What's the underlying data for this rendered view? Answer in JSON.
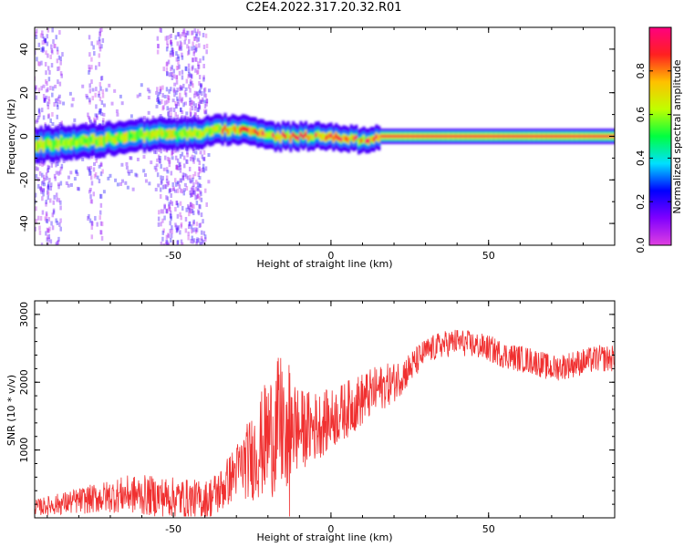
{
  "page": {
    "title": "C2E4.2022.317.20.32.R01"
  },
  "chart_data": [
    {
      "type": "heatmap",
      "title": "",
      "xlabel": "Height of straight line (km)",
      "ylabel": "Frequency (Hz)",
      "xlim": [
        -94,
        90
      ],
      "ylim": [
        -50,
        50
      ],
      "xticks": [
        -50,
        0,
        50
      ],
      "yticks": [
        -40,
        -20,
        0,
        20,
        40
      ],
      "colorbar": {
        "label": "Normalized spectral amplitude",
        "range": [
          0.0,
          1.0
        ],
        "ticks": [
          0.0,
          0.2,
          0.4,
          0.6,
          0.8
        ],
        "stops": [
          "#e040e0",
          "#8000ff",
          "#0000ff",
          "#00e0ff",
          "#00ff40",
          "#c0ff00",
          "#ffc000",
          "#ff2020",
          "#ff0080"
        ]
      },
      "ridge": {
        "x": [
          -94,
          -85,
          -75,
          -65,
          -55,
          -45,
          -40,
          -35,
          -30,
          -25,
          -20,
          -15,
          -10,
          -5,
          0,
          5,
          10,
          15,
          20,
          40,
          60,
          90
        ],
        "y": [
          -4,
          -3,
          -2,
          0,
          1,
          1,
          2,
          3,
          3,
          2,
          0,
          0,
          0,
          0,
          0,
          -1,
          -2,
          0,
          0,
          0,
          0,
          0
        ]
      }
    },
    {
      "type": "line",
      "title": "",
      "xlabel": "Height of straight line (km)",
      "ylabel": "SNR (10 * v/v)",
      "xlim": [
        -94,
        90
      ],
      "ylim": [
        0,
        3200
      ],
      "xticks": [
        -50,
        0,
        50
      ],
      "yticks": [
        1000,
        2000,
        3000
      ],
      "color": "#f03030",
      "trend": {
        "x": [
          -94,
          -80,
          -65,
          -50,
          -40,
          -35,
          -30,
          -25,
          -20,
          -15,
          -10,
          -5,
          0,
          5,
          10,
          15,
          20,
          25,
          30,
          35,
          40,
          45,
          50,
          55,
          60,
          65,
          70,
          75,
          80,
          85,
          90
        ],
        "y": [
          150,
          250,
          350,
          300,
          250,
          400,
          700,
          900,
          1200,
          1400,
          1300,
          1350,
          1450,
          1600,
          1750,
          1900,
          2000,
          2200,
          2450,
          2550,
          2600,
          2550,
          2500,
          2400,
          2350,
          2300,
          2200,
          2250,
          2300,
          2350,
          2350
        ]
      },
      "spread": {
        "x": [
          -94,
          -60,
          -40,
          -30,
          -20,
          -15,
          -10,
          0,
          10,
          20,
          30,
          50,
          70,
          90
        ],
        "y": [
          120,
          300,
          300,
          400,
          900,
          1100,
          600,
          450,
          400,
          300,
          200,
          200,
          200,
          200
        ]
      }
    }
  ]
}
